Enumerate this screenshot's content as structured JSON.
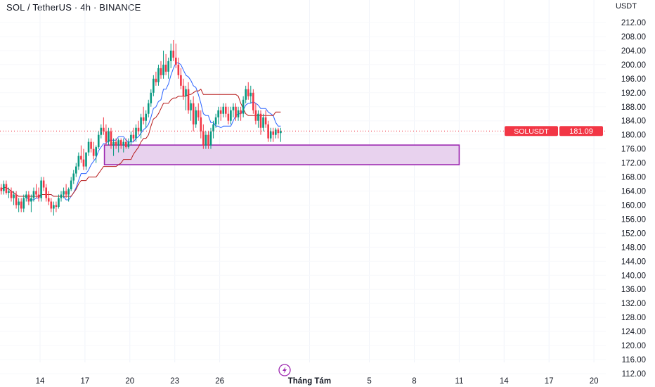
{
  "header": {
    "title": "SOL / TetherUS · 4h · BINANCE",
    "currency": "USDT"
  },
  "colors": {
    "up": "#089981",
    "down": "#f23645",
    "fast_line": "#2962ff",
    "slow_line": "#b71c1c",
    "zone_fill": "#e8d2ee",
    "zone_border": "#9c27b0",
    "price_label": "#f23645"
  },
  "price_label": {
    "symbol": "SOLUSDT",
    "value": "181.09"
  },
  "event_icon": "lightning-icon",
  "chart_data": {
    "type": "candlestick",
    "title": "SOL / TetherUS · 4h · BINANCE",
    "interval": "4h",
    "ylim": [
      112,
      212
    ],
    "y_ticks": [
      "212.00",
      "208.00",
      "204.00",
      "200.00",
      "196.00",
      "192.00",
      "188.00",
      "184.00",
      "180.00",
      "176.00",
      "172.00",
      "168.00",
      "164.00",
      "160.00",
      "156.00",
      "152.00",
      "148.00",
      "144.00",
      "140.00",
      "136.00",
      "132.00",
      "128.00",
      "124.00",
      "120.00",
      "116.00",
      "112.00"
    ],
    "x_ticks": [
      {
        "label": "14",
        "day": 14
      },
      {
        "label": "17",
        "day": 17
      },
      {
        "label": "20",
        "day": 20
      },
      {
        "label": "23",
        "day": 23
      },
      {
        "label": "26",
        "day": 26
      },
      {
        "label": "Tháng Tám",
        "day": 32,
        "bold": true
      },
      {
        "label": "5",
        "day": 36
      },
      {
        "label": "8",
        "day": 39
      },
      {
        "label": "11",
        "day": 42
      },
      {
        "label": "14",
        "day": 45
      },
      {
        "label": "17",
        "day": 48
      },
      {
        "label": "20",
        "day": 51
      }
    ],
    "grid": true,
    "last_price": 181.09,
    "zone": {
      "top": 177.1,
      "bottom": 171.5,
      "start_day": 18.3,
      "end_day": 42
    },
    "candles": [
      [
        165,
        166,
        163,
        164
      ],
      [
        164,
        167,
        163,
        166
      ],
      [
        166,
        167,
        163,
        163.5
      ],
      [
        163.5,
        165,
        162,
        164
      ],
      [
        164,
        165,
        161,
        162
      ],
      [
        162,
        164,
        160,
        163
      ],
      [
        163,
        164,
        159,
        160
      ],
      [
        160,
        162,
        158,
        161
      ],
      [
        161,
        162,
        158,
        159
      ],
      [
        159,
        163,
        158,
        162
      ],
      [
        162,
        164,
        161,
        163
      ],
      [
        163,
        164,
        160,
        161
      ],
      [
        161,
        163,
        158,
        162
      ],
      [
        162,
        165,
        161,
        164
      ],
      [
        164,
        166,
        162,
        163
      ],
      [
        163,
        165,
        161,
        162
      ],
      [
        162,
        168,
        161,
        167
      ],
      [
        167,
        168,
        164,
        165
      ],
      [
        165,
        166,
        161,
        162
      ],
      [
        162,
        164,
        160,
        161
      ],
      [
        161,
        162,
        158,
        159
      ],
      [
        159,
        161,
        157,
        160
      ],
      [
        160,
        161,
        158,
        159.5
      ],
      [
        159.5,
        163,
        159,
        162
      ],
      [
        162,
        164,
        161,
        163
      ],
      [
        163,
        165,
        162,
        164
      ],
      [
        164,
        166,
        162,
        163
      ],
      [
        163,
        165,
        161,
        164.5
      ],
      [
        164.5,
        168,
        164,
        167
      ],
      [
        167,
        170,
        166,
        169
      ],
      [
        169,
        172,
        168,
        171
      ],
      [
        171,
        175,
        170,
        174
      ],
      [
        174,
        177,
        172,
        173
      ],
      [
        173,
        176,
        170,
        171
      ],
      [
        171,
        175,
        170,
        175
      ],
      [
        175,
        179,
        174,
        178
      ],
      [
        178,
        179,
        175,
        176
      ],
      [
        176,
        178,
        173,
        174
      ],
      [
        174,
        177,
        172,
        176.5
      ],
      [
        176.5,
        181,
        176,
        180
      ],
      [
        180,
        183,
        179,
        182
      ],
      [
        182,
        185,
        180,
        181
      ],
      [
        181,
        183,
        177,
        178
      ],
      [
        178,
        182,
        177,
        181
      ],
      [
        181,
        182,
        176,
        177
      ],
      [
        177,
        179,
        174,
        178
      ],
      [
        178,
        179,
        176,
        177
      ],
      [
        177,
        179,
        175,
        178.5
      ],
      [
        178.5,
        179,
        176,
        177
      ],
      [
        177,
        179,
        175,
        178
      ],
      [
        178,
        179,
        176,
        176.5
      ],
      [
        176.5,
        179,
        176,
        178
      ],
      [
        178,
        181,
        177,
        180
      ],
      [
        180,
        182,
        178,
        179
      ],
      [
        179,
        183,
        178,
        182
      ],
      [
        182,
        184,
        180,
        181
      ],
      [
        181,
        186,
        179,
        185
      ],
      [
        185,
        188,
        183,
        184
      ],
      [
        184,
        187,
        182,
        186
      ],
      [
        186,
        190,
        185,
        189
      ],
      [
        189,
        193,
        188,
        192
      ],
      [
        192,
        197,
        191,
        196
      ],
      [
        196,
        198,
        194,
        195
      ],
      [
        195,
        200,
        194,
        199
      ],
      [
        199,
        201,
        196,
        197
      ],
      [
        197,
        204,
        196,
        200
      ],
      [
        200,
        203,
        197,
        198
      ],
      [
        198,
        202,
        196,
        201
      ],
      [
        201,
        206,
        199,
        204
      ],
      [
        204,
        207,
        201,
        202
      ],
      [
        202,
        206,
        199,
        200
      ],
      [
        200,
        202,
        196,
        197
      ],
      [
        197,
        199,
        193,
        194
      ],
      [
        194,
        196,
        190,
        191
      ],
      [
        191,
        194,
        187,
        193
      ],
      [
        193,
        195,
        186,
        187
      ],
      [
        187,
        190,
        184,
        189
      ],
      [
        189,
        191,
        181,
        183
      ],
      [
        183,
        188,
        182,
        187
      ],
      [
        187,
        189,
        184,
        185
      ],
      [
        185,
        187,
        179,
        181
      ],
      [
        181,
        183,
        176,
        177
      ],
      [
        177,
        181,
        176,
        180
      ],
      [
        180,
        181,
        176,
        177
      ],
      [
        177,
        182,
        176,
        181
      ],
      [
        181,
        184,
        179,
        183
      ],
      [
        183,
        186,
        182,
        185
      ],
      [
        185,
        188,
        183,
        187
      ],
      [
        187,
        188,
        184,
        186
      ],
      [
        186,
        189,
        185,
        188
      ],
      [
        188,
        189,
        185,
        186
      ],
      [
        186,
        188,
        183,
        184
      ],
      [
        184,
        188,
        183,
        187
      ],
      [
        187,
        189,
        185,
        188
      ],
      [
        188,
        189,
        184,
        185
      ],
      [
        185,
        188,
        184,
        187
      ],
      [
        187,
        188,
        184,
        186
      ],
      [
        186,
        191,
        185,
        190
      ],
      [
        190,
        194,
        189,
        193
      ],
      [
        193,
        195,
        190,
        191
      ],
      [
        191,
        194,
        189,
        192
      ],
      [
        192,
        193,
        186,
        187
      ],
      [
        187,
        189,
        183,
        184
      ],
      [
        184,
        187,
        182,
        186
      ],
      [
        186,
        187,
        180,
        182
      ],
      [
        182,
        186,
        181,
        185
      ],
      [
        185,
        187,
        182,
        183
      ],
      [
        183,
        184,
        178,
        179
      ],
      [
        179,
        182,
        178,
        181
      ],
      [
        181,
        182,
        178,
        180
      ],
      [
        180,
        182,
        179,
        181.5
      ],
      [
        181.5,
        182,
        179,
        180.5
      ],
      [
        180.5,
        182,
        178,
        181.09
      ]
    ]
  }
}
